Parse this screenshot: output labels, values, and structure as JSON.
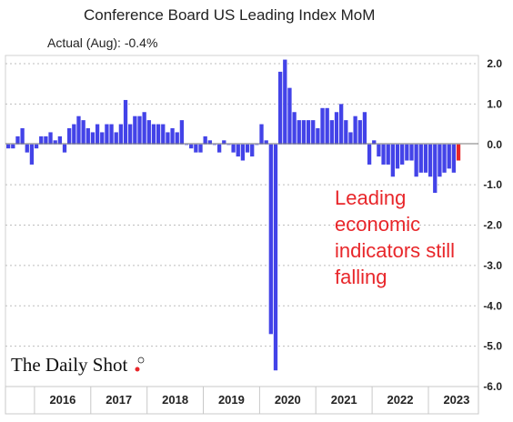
{
  "chart_data": {
    "type": "bar",
    "title": "Conference Board US Leading Index MoM",
    "subtitle": "Actual (Aug):  -0.4%",
    "ylim": [
      -6.0,
      2.0
    ],
    "yticks": [
      "2.0",
      "1.0",
      "0.0",
      "-1.0",
      "-2.0",
      "-3.0",
      "-4.0",
      "-5.0",
      "-6.0"
    ],
    "year_labels": [
      "2016",
      "2017",
      "2018",
      "2019",
      "2020",
      "2021",
      "2022",
      "2023"
    ],
    "series": [
      {
        "name": "",
        "color": "#4343e8",
        "start": "2015-07",
        "values": [
          -0.1,
          -0.1,
          0.2,
          0.4,
          -0.2,
          -0.5,
          -0.1,
          0.2,
          0.2,
          0.3,
          0.1,
          0.2,
          -0.2,
          0.4,
          0.5,
          0.7,
          0.6,
          0.4,
          0.3,
          0.5,
          0.3,
          0.5,
          0.5,
          0.3,
          0.5,
          1.1,
          0.5,
          0.7,
          0.7,
          0.8,
          0.6,
          0.5,
          0.5,
          0.5,
          0.3,
          0.4,
          0.3,
          0.6,
          0.0,
          -0.1,
          -0.2,
          -0.2,
          0.2,
          0.1,
          0.0,
          -0.2,
          0.1,
          0.0,
          -0.2,
          -0.3,
          -0.4,
          -0.2,
          -0.3,
          0.0,
          0.5,
          0.1,
          -4.7,
          -5.6,
          1.8,
          2.1,
          1.4,
          0.8,
          0.6,
          0.6,
          0.6,
          0.6,
          0.4,
          0.9,
          0.9,
          0.6,
          0.8,
          1.0,
          0.6,
          0.3,
          0.7,
          0.6,
          0.8,
          -0.5,
          0.1,
          -0.3,
          -0.5,
          -0.5,
          -0.8,
          -0.6,
          -0.5,
          -0.4,
          -0.4,
          -0.8,
          -0.7,
          -0.7,
          -0.8,
          -1.2,
          -0.8,
          -0.7,
          -0.6,
          -0.7,
          -0.4
        ]
      }
    ],
    "highlight_last_color": "#e8262a",
    "annotation": [
      "Leading",
      "economic",
      "indicators still",
      "falling"
    ],
    "source_logo": "The Daily Shot",
    "grid": "horizontal dashed"
  }
}
